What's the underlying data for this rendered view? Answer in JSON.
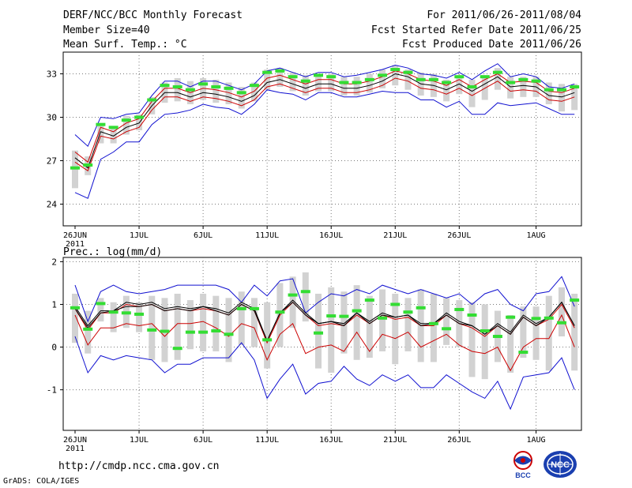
{
  "header": {
    "title": "DERF/NCC/BCC Monthly Forecast",
    "member_size": "Member Size=40",
    "variable": "Mean Surf. Temp.: °C",
    "period": "For 2011/06/26-2011/08/04",
    "started": "Fcst Started Refer Date 2011/06/25",
    "produced": "Fcst Produced Date 2011/06/26"
  },
  "footer": {
    "url": "http://cmdp.ncc.cma.gov.cn",
    "grads": "GrADS: COLA/IGES",
    "logo_left_text": "BCC",
    "logo_right_text": "NCC"
  },
  "colors": {
    "min_max": "#1010d0",
    "mean": "#000000",
    "red": "#cc0000",
    "bar": "#d2d2d2",
    "green": "#33dd33",
    "grid": "#7a7a7a"
  },
  "chart_data": [
    {
      "type": "line",
      "title": "Mean Surf. Temp.: °C",
      "x_tick_labels": [
        "26JUN",
        "1JUL",
        "6JUL",
        "11JUL",
        "16JUL",
        "21JUL",
        "26JUL",
        "1AUG"
      ],
      "x_tick_positions": [
        0,
        5,
        10,
        15,
        20,
        25,
        30,
        36
      ],
      "x_year_label": "2011",
      "ylim": [
        22.5,
        34.5
      ],
      "y_ticks": [
        24,
        27,
        30,
        33
      ],
      "series": [
        {
          "name": "max",
          "color": "#1010d0",
          "values": [
            28.8,
            28,
            30,
            29.9,
            30.2,
            30.3,
            31.5,
            32.5,
            32.5,
            32.1,
            32.5,
            32.5,
            32.2,
            31.9,
            32.3,
            33.2,
            33.4,
            33.1,
            32.8,
            33.1,
            33.1,
            32.8,
            32.9,
            33.1,
            33.3,
            33.6,
            33.4,
            33,
            32.9,
            32.7,
            33.1,
            32.6,
            33.2,
            33.7,
            32.8,
            33,
            32.8,
            32.1,
            32,
            32.3
          ]
        },
        {
          "name": "upper",
          "color": "#cc0000",
          "values": [
            27.6,
            26.9,
            29.3,
            29,
            29.6,
            29.9,
            31.1,
            32,
            32,
            31.7,
            32,
            31.9,
            31.7,
            31.4,
            31.8,
            32.7,
            32.9,
            32.6,
            32.3,
            32.6,
            32.6,
            32.3,
            32.3,
            32.5,
            32.8,
            33.2,
            33,
            32.6,
            32.5,
            32.2,
            32.6,
            32.1,
            32.6,
            33,
            32.4,
            32.5,
            32.4,
            31.8,
            31.7,
            32
          ]
        },
        {
          "name": "mean",
          "color": "#000000",
          "values": [
            27.2,
            26.5,
            29,
            28.7,
            29.3,
            29.6,
            30.8,
            31.7,
            31.7,
            31.4,
            31.7,
            31.6,
            31.4,
            31.1,
            31.5,
            32.4,
            32.6,
            32.3,
            32,
            32.3,
            32.3,
            32,
            32,
            32.2,
            32.5,
            33,
            32.8,
            32.3,
            32.2,
            31.9,
            32.3,
            31.8,
            32.3,
            32.8,
            32.1,
            32.2,
            32.1,
            31.5,
            31.4,
            31.7
          ]
        },
        {
          "name": "lower",
          "color": "#cc0000",
          "values": [
            26.9,
            26.3,
            28.7,
            28.5,
            29,
            29.3,
            30.5,
            31.4,
            31.4,
            31.1,
            31.4,
            31.3,
            31.1,
            30.8,
            31.2,
            32.1,
            32.3,
            32,
            31.7,
            32,
            32,
            31.7,
            31.7,
            31.9,
            32.2,
            32.7,
            32.5,
            32,
            31.9,
            31.6,
            32,
            31.5,
            32,
            32.5,
            31.8,
            31.9,
            31.8,
            31.2,
            31.1,
            31.4
          ]
        },
        {
          "name": "min",
          "color": "#1010d0",
          "values": [
            24.8,
            24.4,
            27.1,
            27.6,
            28.3,
            28.3,
            29.5,
            30.2,
            30.3,
            30.5,
            30.9,
            30.7,
            30.6,
            30.2,
            30.9,
            31.9,
            31.7,
            31.6,
            31.2,
            31.7,
            31.7,
            31.4,
            31.4,
            31.6,
            31.8,
            31.7,
            31.7,
            31.2,
            31.2,
            30.7,
            31.1,
            30.2,
            30.2,
            31,
            30.8,
            30.9,
            31,
            30.6,
            30.2,
            30.2
          ]
        }
      ],
      "bars": {
        "color": "#d2d2d2",
        "low": [
          25.1,
          26,
          28.2,
          28.2,
          28.8,
          29.1,
          30.2,
          31,
          31.1,
          30.9,
          31.2,
          31,
          30.9,
          30.6,
          31.1,
          31.9,
          32.1,
          31.8,
          31.5,
          31.8,
          31.8,
          31.5,
          31.5,
          31.7,
          32,
          32.2,
          31.9,
          31.5,
          31.4,
          31.1,
          31.6,
          30.7,
          31.2,
          31.9,
          31.3,
          31.4,
          31.4,
          30.9,
          30.4,
          30.5
        ],
        "high": [
          27.7,
          27.3,
          29.6,
          29.4,
          30.1,
          30.2,
          31.4,
          32.4,
          32.7,
          32.5,
          32.7,
          32.6,
          32.4,
          32.1,
          32.4,
          33.3,
          33.4,
          33.1,
          32.9,
          33,
          33,
          32.8,
          32.8,
          33,
          33.3,
          33.6,
          33.3,
          33.1,
          33,
          32.6,
          32.9,
          32.6,
          32.7,
          33.4,
          32.8,
          32.8,
          32.8,
          32.4,
          32.3,
          32.3
        ]
      },
      "markers": {
        "color": "#33dd33",
        "values": [
          26.5,
          26.7,
          29.5,
          29.3,
          29.8,
          30,
          31.2,
          32.2,
          32.1,
          31.9,
          32.3,
          32.1,
          32,
          31.7,
          32.2,
          33.1,
          33.2,
          32.8,
          32.5,
          32.9,
          32.8,
          32.4,
          32.4,
          32.6,
          32.9,
          33.3,
          33.1,
          32.6,
          32.6,
          32.4,
          32.8,
          32.1,
          32.8,
          33.1,
          32.4,
          32.6,
          32.5,
          31.9,
          31.9,
          32.1
        ]
      }
    },
    {
      "type": "line",
      "title": "Prec.: log(mm/d)",
      "x_tick_labels": [
        "26JUN",
        "1JUL",
        "6JUL",
        "11JUL",
        "16JUL",
        "21JUL",
        "26JUL",
        "1AUG"
      ],
      "x_tick_positions": [
        0,
        5,
        10,
        15,
        20,
        25,
        30,
        36
      ],
      "x_year_label": "2011",
      "ylim": [
        -1.95,
        2.1
      ],
      "y_ticks": [
        -1,
        0,
        1,
        2
      ],
      "series": [
        {
          "name": "max",
          "color": "#1010d0",
          "values": [
            1.45,
            0.6,
            1.3,
            1.45,
            1.3,
            1.25,
            1.3,
            1.35,
            1.45,
            1.45,
            1.45,
            1.45,
            1.35,
            1.05,
            1.45,
            1.2,
            1.55,
            1.6,
            0.8,
            1.05,
            1.25,
            1.2,
            1.35,
            1.25,
            1.45,
            1.35,
            1.25,
            1.35,
            1.25,
            1.15,
            1.25,
            1.0,
            1.25,
            1.35,
            1.0,
            0.85,
            1.25,
            1.3,
            1.65,
            0.95
          ]
        },
        {
          "name": "mean",
          "color": "#000000",
          "values": [
            0.95,
            0.5,
            0.85,
            0.85,
            1.05,
            1.0,
            1.05,
            0.9,
            0.95,
            0.9,
            0.95,
            0.9,
            0.8,
            1.05,
            0.9,
            0.15,
            0.8,
            1.1,
            0.8,
            0.55,
            0.6,
            0.55,
            0.8,
            0.6,
            0.8,
            0.7,
            0.75,
            0.55,
            0.55,
            0.8,
            0.6,
            0.5,
            0.3,
            0.55,
            0.35,
            0.75,
            0.55,
            0.7,
            1.05,
            0.5
          ]
        },
        {
          "name": "upper",
          "color": "#cc0000",
          "values": [
            0.9,
            0.4,
            0.8,
            0.8,
            1.0,
            0.95,
            1.0,
            0.85,
            0.9,
            0.85,
            0.9,
            0.85,
            0.75,
            1.0,
            0.85,
            0.1,
            0.75,
            1.05,
            0.75,
            0.5,
            0.55,
            0.5,
            0.75,
            0.55,
            0.75,
            0.65,
            0.7,
            0.5,
            0.5,
            0.75,
            0.55,
            0.45,
            0.25,
            0.5,
            0.3,
            0.7,
            0.5,
            0.65,
            1.0,
            0.45
          ]
        },
        {
          "name": "red",
          "color": "#cc0000",
          "values": [
            0.75,
            0.05,
            0.45,
            0.45,
            0.55,
            0.5,
            0.55,
            0.25,
            0.55,
            0.55,
            0.6,
            0.45,
            0.25,
            0.55,
            0.45,
            -0.3,
            0.3,
            0.55,
            -0.15,
            0.0,
            0.05,
            -0.1,
            0.35,
            -0.1,
            0.3,
            0.2,
            0.35,
            0.0,
            0.15,
            0.3,
            0.05,
            -0.1,
            -0.15,
            0.0,
            -0.55,
            0.0,
            0.2,
            0.2,
            0.75,
            0.0
          ]
        },
        {
          "name": "min",
          "color": "#1010d0",
          "values": [
            0.25,
            -0.6,
            -0.2,
            -0.3,
            -0.2,
            -0.25,
            -0.3,
            -0.6,
            -0.4,
            -0.4,
            -0.25,
            -0.25,
            -0.25,
            0.1,
            -0.3,
            -1.2,
            -0.75,
            -0.4,
            -1.1,
            -0.85,
            -0.8,
            -0.45,
            -0.75,
            -0.9,
            -0.65,
            -0.8,
            -0.65,
            -0.95,
            -0.95,
            -0.65,
            -0.85,
            -1.05,
            -1.2,
            -0.8,
            -1.45,
            -0.7,
            -0.65,
            -0.6,
            -0.25,
            -1.0
          ]
        },
        {
          "name": "black2",
          "color": "#000000",
          "values": [
            0.9,
            0.45,
            0.8,
            0.85,
            0.95,
            0.95,
            1.0,
            0.85,
            0.9,
            0.85,
            0.95,
            0.85,
            0.75,
            1.0,
            0.85,
            0.15,
            0.8,
            1.05,
            0.75,
            0.55,
            0.6,
            0.5,
            0.8,
            0.55,
            0.75,
            0.7,
            0.75,
            0.5,
            0.55,
            0.75,
            0.55,
            0.5,
            0.3,
            0.5,
            0.3,
            0.7,
            0.5,
            0.7,
            1.05,
            0.5
          ]
        }
      ],
      "bars": {
        "color": "#d2d2d2",
        "low": [
          0.1,
          -0.15,
          0.6,
          0.35,
          0.45,
          0.35,
          -0.3,
          -0.35,
          -0.3,
          -0.05,
          -0.1,
          -0.1,
          -0.35,
          0.05,
          0.0,
          -0.5,
          0.0,
          0.45,
          0.6,
          -0.5,
          -0.6,
          -0.15,
          -0.3,
          -0.25,
          -0.1,
          -0.4,
          -0.1,
          -0.35,
          -0.35,
          0.05,
          0.0,
          -0.7,
          -0.75,
          -0.35,
          -0.6,
          -0.25,
          -0.3,
          -0.55,
          0.25,
          -0.55
        ],
        "high": [
          1.25,
          0.85,
          1.15,
          1.05,
          1.2,
          1.05,
          1.2,
          1.15,
          1.25,
          1.1,
          1.25,
          1.2,
          1.15,
          1.3,
          1.15,
          1.05,
          1.5,
          1.65,
          1.75,
          1.25,
          1.4,
          1.3,
          1.45,
          1.2,
          1.35,
          1.25,
          1.15,
          1.35,
          1.25,
          1.15,
          1.1,
          1.05,
          1.0,
          0.85,
          0.75,
          0.95,
          0.95,
          1.2,
          1.4,
          1.25
        ]
      },
      "markers": {
        "color": "#33dd33",
        "values": [
          0.92,
          0.42,
          1.02,
          0.82,
          0.8,
          0.77,
          0.4,
          0.37,
          -0.03,
          0.35,
          0.35,
          0.38,
          0.3,
          0.9,
          0.9,
          0.17,
          0.82,
          1.22,
          1.3,
          0.33,
          0.73,
          0.72,
          0.85,
          1.1,
          0.68,
          1.0,
          0.82,
          0.92,
          0.55,
          0.43,
          0.88,
          0.75,
          0.38,
          0.25,
          0.7,
          -0.12,
          0.67,
          0.68,
          0.57,
          1.1
        ]
      }
    }
  ]
}
